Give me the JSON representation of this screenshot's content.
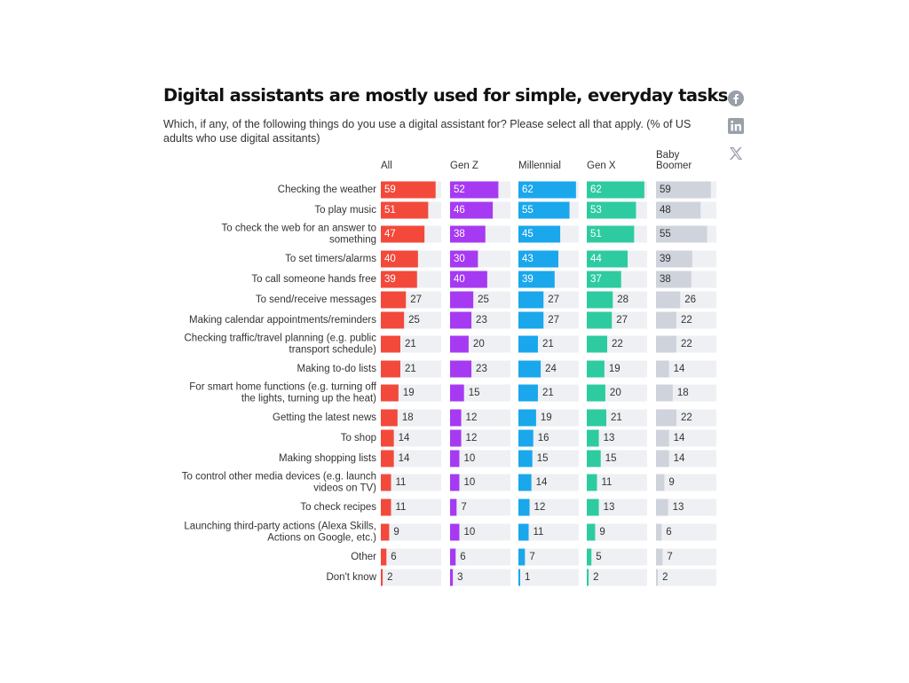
{
  "title": "Digital assistants are mostly used for simple, everyday tasks",
  "subtitle": "Which, if any, of the following things do you use a digital assistant for? Please select all that apply. (% of US adults who use digital assitants)",
  "share_icons": [
    "facebook-icon",
    "linkedin-icon",
    "x-twitter-icon"
  ],
  "colors": {
    "All": "#f2493b",
    "Gen Z": "#a63af2",
    "Millennial": "#1aa7ec",
    "Gen X": "#2ecba0",
    "Baby Boomer": "#cfd3dc",
    "track": "#eef0f3"
  },
  "chart_data": {
    "type": "bar",
    "orientation": "horizontal",
    "layout": "small-multiples",
    "title": "Digital assistants are mostly used for simple, everyday tasks",
    "subtitle": "Which, if any, of the following things do you use a digital assistant for? Please select all that apply. (% of US adults who use digital assitants)",
    "xlim": [
      0,
      60
    ],
    "grid": false,
    "categories": [
      [
        "Checking the weather"
      ],
      [
        "To play music"
      ],
      [
        "To check the web for an answer to",
        "something"
      ],
      [
        "To set timers/alarms"
      ],
      [
        "To call someone hands free"
      ],
      [
        "To send/receive messages"
      ],
      [
        "Making calendar appointments/reminders"
      ],
      [
        "Checking traffic/travel planning (e.g. public",
        "transport schedule)"
      ],
      [
        "Making to-do lists"
      ],
      [
        "For smart home functions (e.g. turning off",
        "the lights, turning up the heat)"
      ],
      [
        "Getting the latest news"
      ],
      [
        "To shop"
      ],
      [
        "Making shopping lists"
      ],
      [
        "To control other media devices (e.g. launch",
        "videos on TV)"
      ],
      [
        "To check recipes"
      ],
      [
        "Launching third-party actions (Alexa Skills,",
        "Actions on Google, etc.)"
      ],
      [
        "Other"
      ],
      [
        "Don't know"
      ]
    ],
    "series": [
      {
        "name": "All",
        "header": [
          "All"
        ],
        "values": [
          59,
          51,
          47,
          40,
          39,
          27,
          25,
          21,
          21,
          19,
          18,
          14,
          14,
          11,
          11,
          9,
          6,
          2
        ]
      },
      {
        "name": "Gen Z",
        "header": [
          "Gen Z"
        ],
        "values": [
          52,
          46,
          38,
          30,
          40,
          25,
          23,
          20,
          23,
          15,
          12,
          12,
          10,
          10,
          7,
          10,
          6,
          3
        ]
      },
      {
        "name": "Millennial",
        "header": [
          "Millennial"
        ],
        "values": [
          62,
          55,
          45,
          43,
          39,
          27,
          27,
          21,
          24,
          21,
          19,
          16,
          15,
          14,
          12,
          11,
          7,
          1
        ]
      },
      {
        "name": "Gen X",
        "header": [
          "Gen X"
        ],
        "values": [
          62,
          53,
          51,
          44,
          37,
          28,
          27,
          22,
          19,
          20,
          21,
          13,
          15,
          11,
          13,
          9,
          5,
          2
        ]
      },
      {
        "name": "Baby Boomer",
        "header": [
          "Baby",
          "Boomer"
        ],
        "values": [
          59,
          48,
          55,
          39,
          38,
          26,
          22,
          22,
          14,
          18,
          22,
          14,
          14,
          9,
          13,
          6,
          7,
          2
        ]
      }
    ]
  }
}
